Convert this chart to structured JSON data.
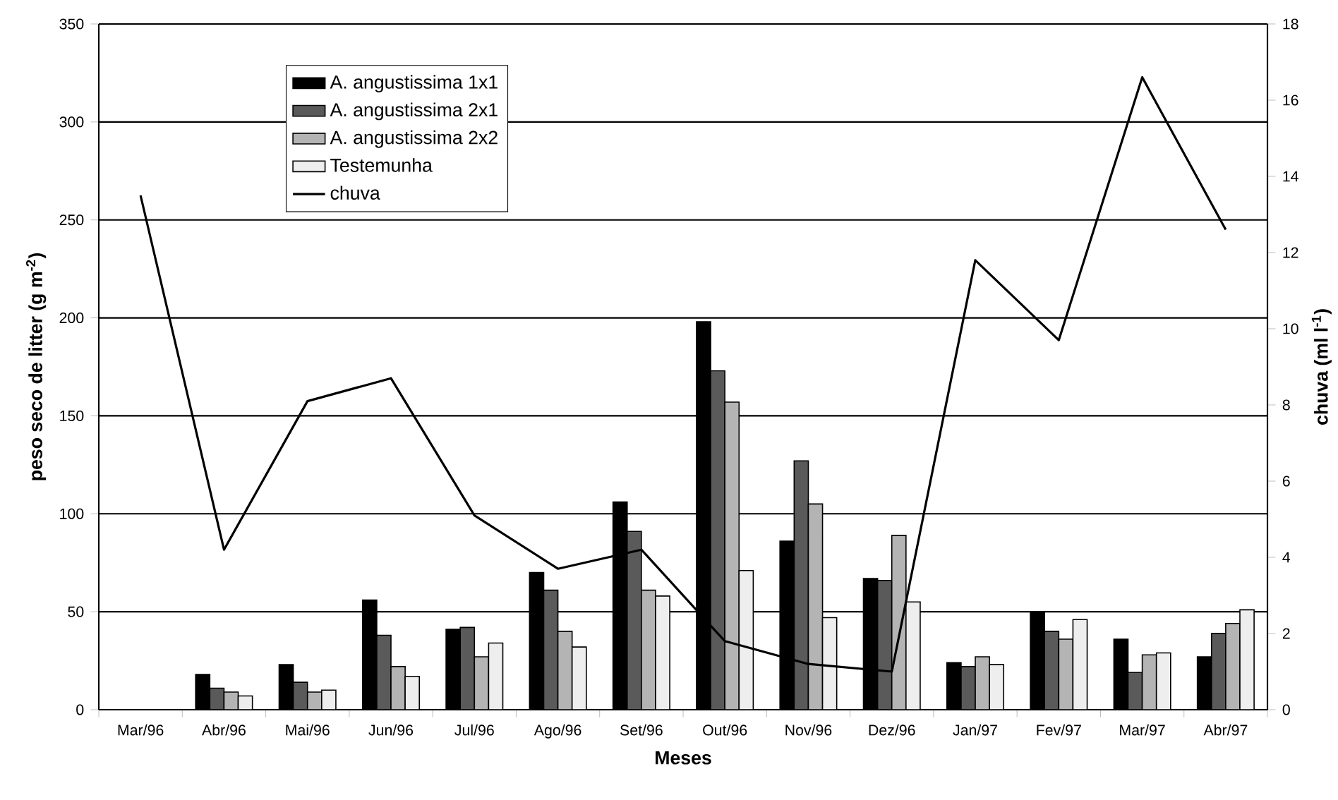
{
  "chart_data": {
    "type": "bar",
    "xlabel": "Meses",
    "ylabel": "peso seco de litter (g m$^{-2}$)",
    "y2label": "chuva (ml l$^{-1}$)",
    "categories": [
      "Mar/96",
      "Abr/96",
      "Mai/96",
      "Jun/96",
      "Jul/96",
      "Ago/96",
      "Set/96",
      "Out/96",
      "Nov/96",
      "Dez/96",
      "Jan/97",
      "Fev/97",
      "Mar/97",
      "Abr/97"
    ],
    "series": [
      {
        "name": "A. angustissima 1x1",
        "color": "#000000",
        "values": [
          null,
          18,
          23,
          56,
          41,
          70,
          106,
          198,
          86,
          67,
          24,
          50,
          36,
          27
        ]
      },
      {
        "name": "A. angustissima 2x1",
        "color": "#5a5a5a",
        "values": [
          null,
          11,
          14,
          38,
          42,
          61,
          91,
          173,
          127,
          66,
          22,
          40,
          19,
          39
        ]
      },
      {
        "name": "A. angustissima 2x2",
        "color": "#b4b4b4",
        "values": [
          null,
          9,
          9,
          22,
          27,
          40,
          61,
          157,
          105,
          89,
          27,
          36,
          28,
          44
        ]
      },
      {
        "name": "Testemunha",
        "color": "#eeeeee",
        "values": [
          null,
          7,
          10,
          17,
          34,
          32,
          58,
          71,
          47,
          55,
          23,
          46,
          29,
          51
        ]
      },
      {
        "name": "chuva",
        "type": "line",
        "axis": "y2",
        "color": "#000000",
        "values": [
          13.5,
          4.2,
          8.1,
          8.7,
          5.1,
          3.7,
          4.2,
          1.8,
          1.2,
          1.0,
          11.8,
          9.7,
          16.6,
          12.6
        ]
      }
    ],
    "ylim": [
      0,
      350
    ],
    "yticks": [
      0,
      50,
      100,
      150,
      200,
      250,
      300,
      350
    ],
    "y2lim": [
      0,
      18
    ],
    "y2ticks": [
      0,
      2,
      4,
      6,
      8,
      10,
      12,
      14,
      16,
      18
    ],
    "grid": "y",
    "legend": "top left",
    "marker": "none",
    "line_style": "solid"
  }
}
